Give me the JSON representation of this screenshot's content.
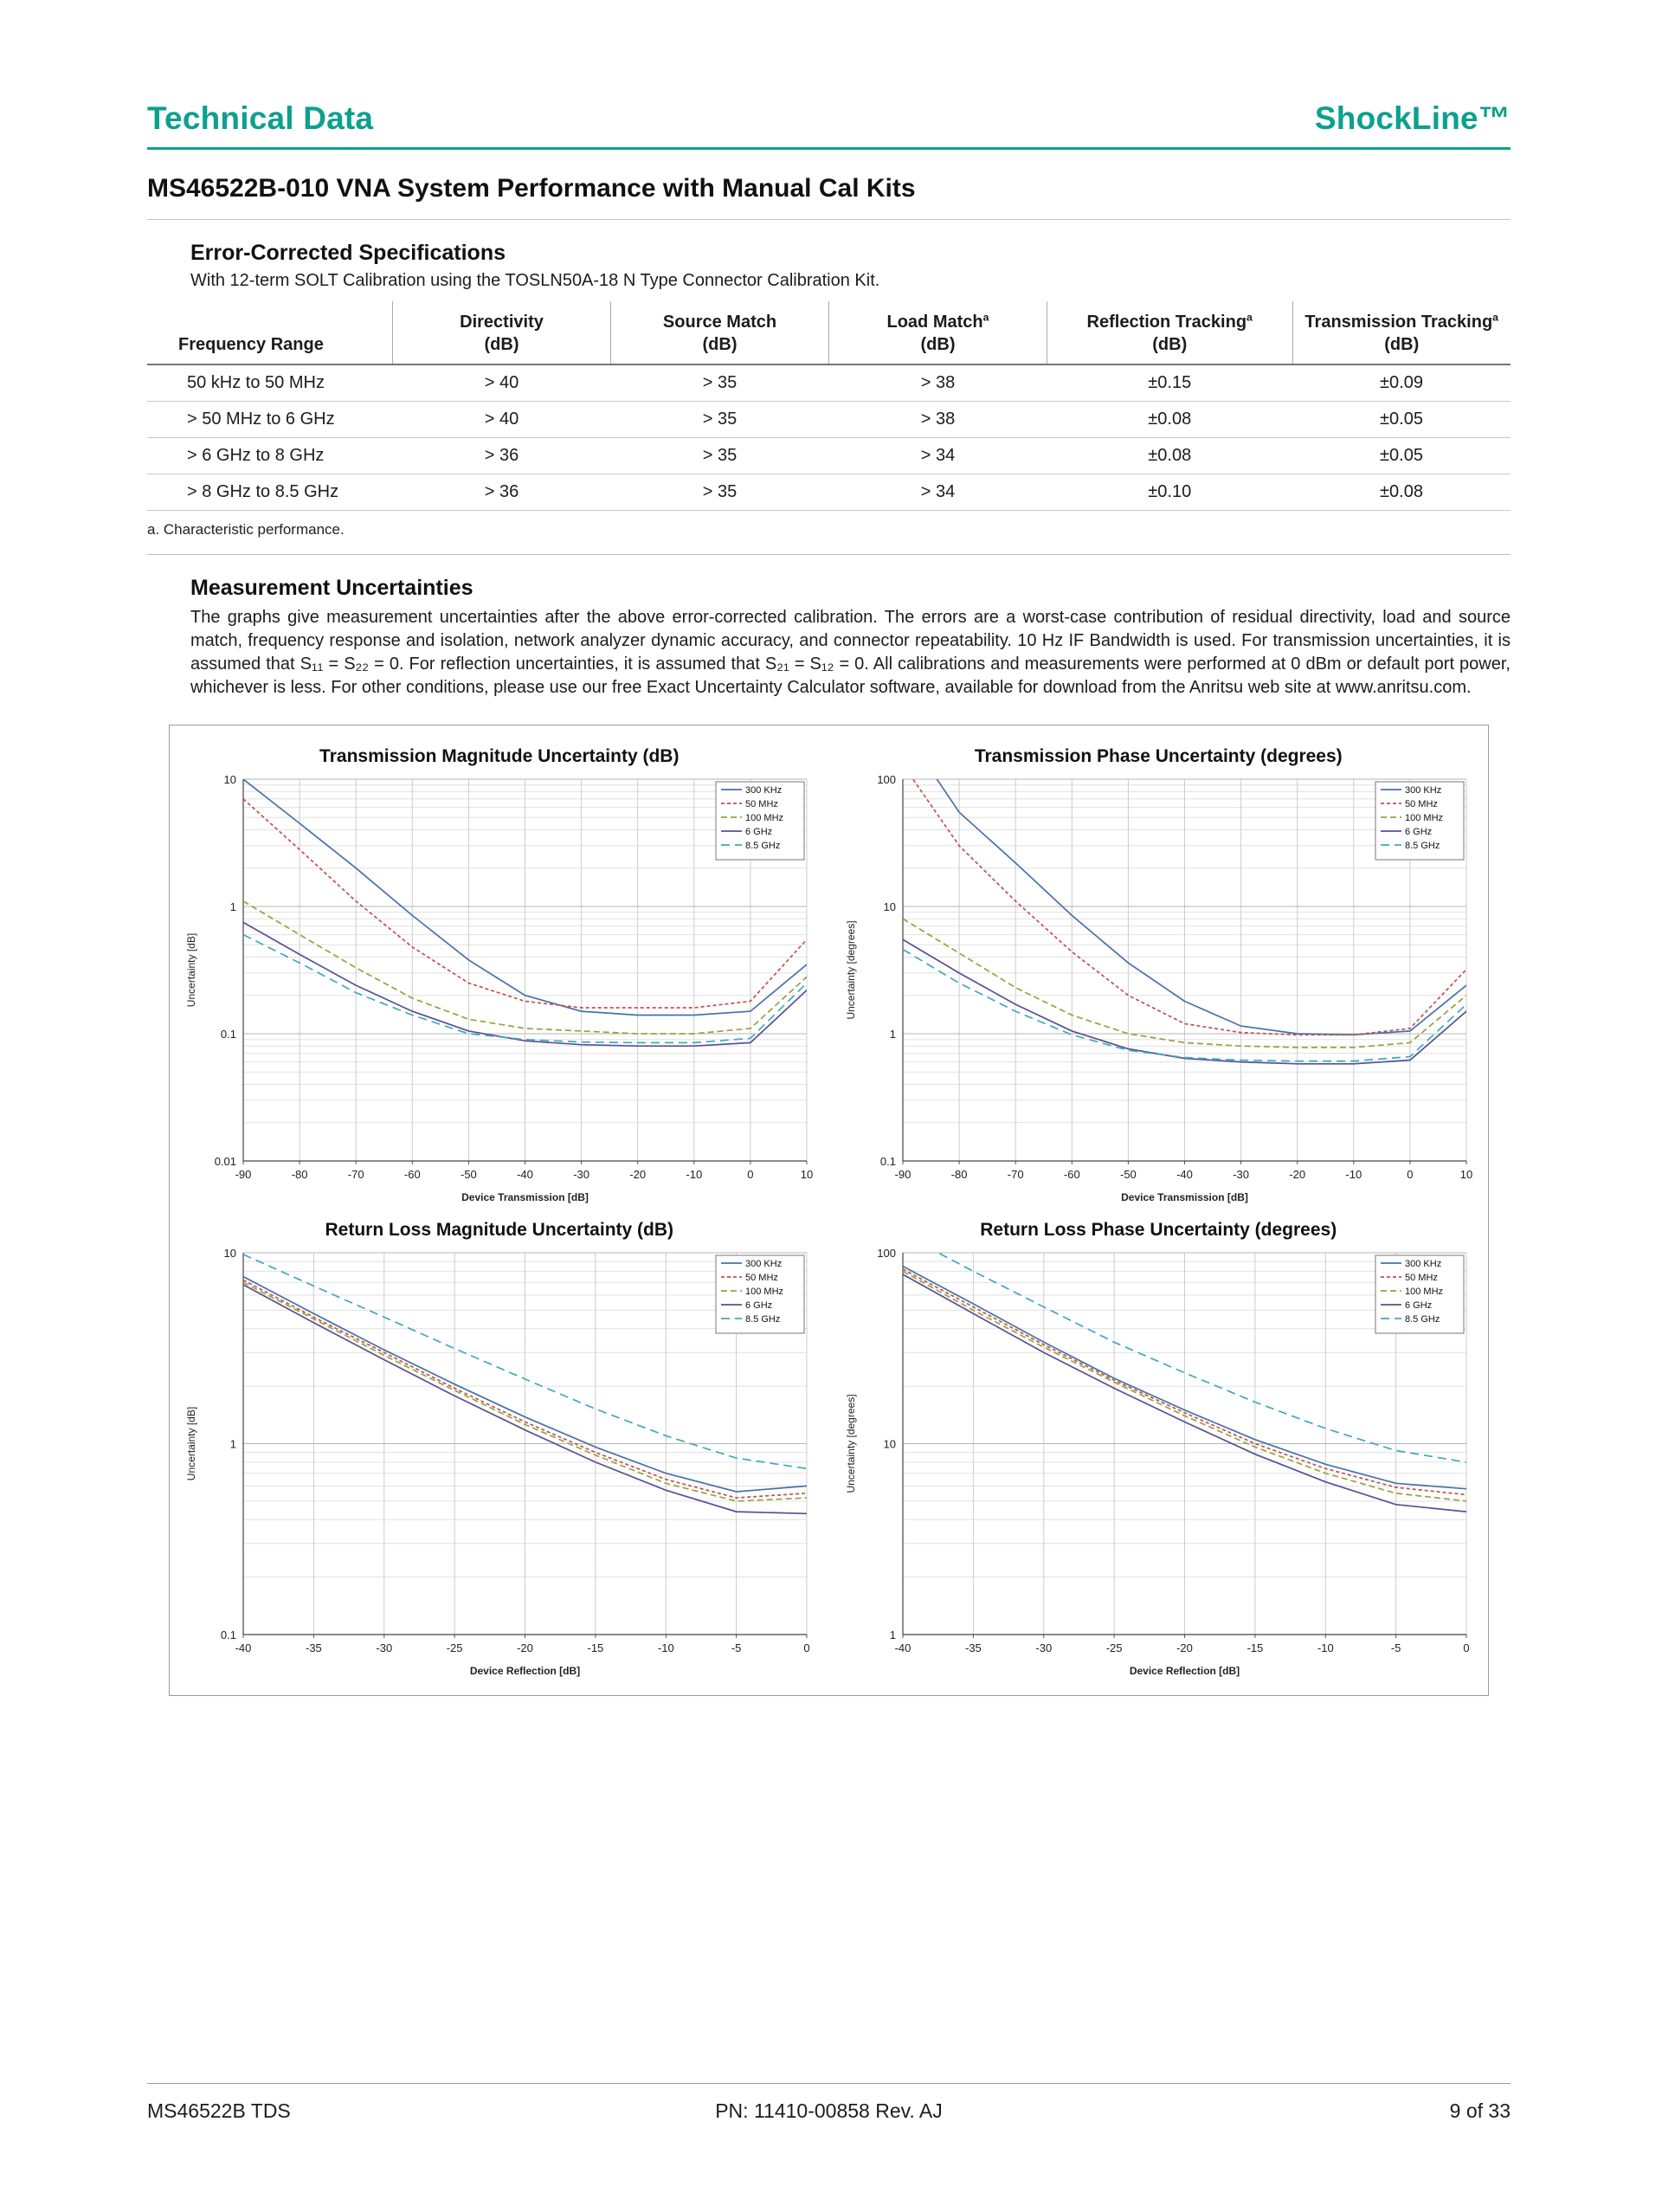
{
  "page": {
    "header_left": "Technical Data",
    "header_right": "ShockLine™",
    "title": "MS46522B-010 VNA System Performance with Manual Cal Kits",
    "footer_left": "MS46522B TDS",
    "footer_center": "PN: 11410-00858 Rev. AJ",
    "footer_right": "9 of 33"
  },
  "colors": {
    "brand_teal": "#0da08e"
  },
  "specs": {
    "section_title": "Error-Corrected Specifications",
    "intro": "With 12-term SOLT Calibration using the TOSLN50A-18 N Type Connector Calibration Kit.",
    "table": {
      "columns": [
        {
          "label": "Frequency Range",
          "sup": "",
          "unit": ""
        },
        {
          "label": "Directivity",
          "sup": "",
          "unit": "(dB)"
        },
        {
          "label": "Source Match",
          "sup": "",
          "unit": "(dB)"
        },
        {
          "label": "Load Match",
          "sup": "a",
          "unit": "(dB)"
        },
        {
          "label": "Reflection Tracking",
          "sup": "a",
          "unit": "(dB)"
        },
        {
          "label": "Transmission Tracking",
          "sup": "a",
          "unit": "(dB)"
        }
      ],
      "rows": [
        [
          "50 kHz to 50 MHz",
          "> 40",
          "> 35",
          "> 38",
          "±0.15",
          "±0.09"
        ],
        [
          "> 50 MHz to 6 GHz",
          "> 40",
          "> 35",
          "> 38",
          "±0.08",
          "±0.05"
        ],
        [
          "> 6 GHz to 8 GHz",
          "> 36",
          "> 35",
          "> 34",
          "±0.08",
          "±0.05"
        ],
        [
          "> 8 GHz to 8.5 GHz",
          "> 36",
          "> 35",
          "> 34",
          "±0.10",
          "±0.08"
        ]
      ]
    },
    "footnote": "a. Characteristic performance."
  },
  "uncertainties": {
    "section_title": "Measurement Uncertainties",
    "paragraph": "The graphs give measurement uncertainties after the above error-corrected calibration. The errors are a worst-case contribution of residual directivity, load and source match, frequency response and isolation, network analyzer dynamic accuracy, and connector repeatability. 10 Hz IF Bandwidth is used. For transmission uncertainties, it is assumed that S₁₁ = S₂₂ = 0. For reflection uncertainties, it is assumed that S₂₁ = S₁₂ = 0. All calibrations and measurements were performed at 0 dBm or default port power, whichever is less. For other conditions, please use our free Exact Uncertainty Calculator software, available for download from the Anritsu web site at www.anritsu.com."
  },
  "chart_data": [
    {
      "type": "line",
      "title": "Transmission Magnitude Uncertainty (dB)",
      "xlabel": "Device Transmission [dB]",
      "ylabel": "Uncertainty [dB]",
      "xlim": [
        -90,
        10
      ],
      "xtick_step": 10,
      "ylog": true,
      "ylim": [
        0.01,
        10
      ],
      "grid": true,
      "legend_position": "top-right",
      "x": [
        -90,
        -80,
        -70,
        -60,
        -50,
        -40,
        -30,
        -20,
        -10,
        0,
        10
      ],
      "series": [
        {
          "name": "300 KHz",
          "color": "#4572a7",
          "dash": "solid",
          "values": [
            10,
            4.5,
            2.0,
            0.85,
            0.38,
            0.2,
            0.15,
            0.14,
            0.14,
            0.15,
            0.35
          ]
        },
        {
          "name": "50 MHz",
          "color": "#c0504d",
          "dash": "shortdash",
          "values": [
            7.0,
            2.8,
            1.1,
            0.48,
            0.25,
            0.18,
            0.16,
            0.16,
            0.16,
            0.18,
            0.55
          ]
        },
        {
          "name": "100 MHz",
          "color": "#9ba03b",
          "dash": "dash",
          "values": [
            1.1,
            0.6,
            0.33,
            0.19,
            0.13,
            0.11,
            0.105,
            0.1,
            0.1,
            0.11,
            0.28
          ]
        },
        {
          "name": "6 GHz",
          "color": "#565095",
          "dash": "solid",
          "values": [
            0.75,
            0.42,
            0.24,
            0.15,
            0.105,
            0.088,
            0.082,
            0.08,
            0.08,
            0.085,
            0.22
          ]
        },
        {
          "name": "8.5 GHz",
          "color": "#3fa9bc",
          "dash": "longdash",
          "values": [
            0.6,
            0.36,
            0.21,
            0.14,
            0.1,
            0.09,
            0.086,
            0.085,
            0.085,
            0.092,
            0.25
          ]
        }
      ]
    },
    {
      "type": "line",
      "title": "Transmission Phase Uncertainty (degrees)",
      "xlabel": "Device Transmission [dB]",
      "ylabel": "Uncertainty [degrees]",
      "xlim": [
        -90,
        10
      ],
      "xtick_step": 10,
      "ylog": true,
      "ylim": [
        0.1,
        100
      ],
      "grid": true,
      "legend_position": "top-right",
      "x": [
        -90,
        -80,
        -70,
        -60,
        -50,
        -40,
        -30,
        -20,
        -10,
        0,
        10
      ],
      "series": [
        {
          "name": "300 KHz",
          "color": "#4572a7",
          "dash": "solid",
          "values": [
            250,
            55,
            22,
            8.5,
            3.6,
            1.8,
            1.15,
            1.0,
            0.98,
            1.05,
            2.4
          ]
        },
        {
          "name": "50 MHz",
          "color": "#c0504d",
          "dash": "shortdash",
          "values": [
            130,
            30,
            11,
            4.4,
            2.0,
            1.2,
            1.02,
            0.98,
            0.98,
            1.1,
            3.2
          ]
        },
        {
          "name": "100 MHz",
          "color": "#9ba03b",
          "dash": "dash",
          "values": [
            8.0,
            4.3,
            2.3,
            1.4,
            1.0,
            0.85,
            0.8,
            0.78,
            0.78,
            0.85,
            2.0
          ]
        },
        {
          "name": "6 GHz",
          "color": "#565095",
          "dash": "solid",
          "values": [
            5.5,
            3.0,
            1.7,
            1.05,
            0.76,
            0.64,
            0.6,
            0.58,
            0.58,
            0.62,
            1.5
          ]
        },
        {
          "name": "8.5 GHz",
          "color": "#3fa9bc",
          "dash": "longdash",
          "values": [
            4.6,
            2.5,
            1.5,
            0.98,
            0.74,
            0.65,
            0.62,
            0.61,
            0.61,
            0.66,
            1.7
          ]
        }
      ]
    },
    {
      "type": "line",
      "title": "Return Loss Magnitude Uncertainty (dB)",
      "xlabel": "Device Reflection [dB]",
      "ylabel": "Uncertainty [dB]",
      "xlim": [
        -40,
        0
      ],
      "xtick_step": 5,
      "ylog": true,
      "ylim": [
        0.1,
        10
      ],
      "grid": true,
      "legend_position": "top-right",
      "x": [
        -40,
        -35,
        -30,
        -25,
        -20,
        -15,
        -10,
        -5,
        0
      ],
      "series": [
        {
          "name": "300 KHz",
          "color": "#4572a7",
          "dash": "solid",
          "values": [
            7.5,
            4.8,
            3.1,
            2.05,
            1.38,
            0.96,
            0.7,
            0.56,
            0.6
          ]
        },
        {
          "name": "50 MHz",
          "color": "#c0504d",
          "dash": "shortdash",
          "values": [
            7.2,
            4.6,
            3.0,
            1.95,
            1.3,
            0.9,
            0.65,
            0.52,
            0.55
          ]
        },
        {
          "name": "100 MHz",
          "color": "#9ba03b",
          "dash": "dash",
          "values": [
            7.0,
            4.5,
            2.9,
            1.9,
            1.26,
            0.87,
            0.62,
            0.5,
            0.52
          ]
        },
        {
          "name": "6 GHz",
          "color": "#565095",
          "dash": "solid",
          "values": [
            6.8,
            4.3,
            2.75,
            1.78,
            1.18,
            0.8,
            0.57,
            0.44,
            0.43
          ]
        },
        {
          "name": "8.5 GHz",
          "color": "#3fa9bc",
          "dash": "longdash",
          "values": [
            9.8,
            6.7,
            4.6,
            3.15,
            2.18,
            1.52,
            1.1,
            0.84,
            0.74
          ]
        }
      ]
    },
    {
      "type": "line",
      "title": "Return Loss Phase Uncertainty (degrees)",
      "xlabel": "Device Reflection [dB]",
      "ylabel": "Uncertainty [degrees]",
      "xlim": [
        -40,
        0
      ],
      "xtick_step": 5,
      "ylog": true,
      "ylim": [
        1,
        100
      ],
      "grid": true,
      "legend_position": "top-right",
      "x": [
        -40,
        -35,
        -30,
        -25,
        -20,
        -15,
        -10,
        -5,
        0
      ],
      "series": [
        {
          "name": "300 KHz",
          "color": "#4572a7",
          "dash": "solid",
          "values": [
            85,
            54,
            34,
            22,
            15,
            10.5,
            7.8,
            6.2,
            5.8
          ]
        },
        {
          "name": "50 MHz",
          "color": "#c0504d",
          "dash": "shortdash",
          "values": [
            82,
            52,
            33,
            21.5,
            14.5,
            10,
            7.4,
            5.9,
            5.4
          ]
        },
        {
          "name": "100 MHz",
          "color": "#9ba03b",
          "dash": "dash",
          "values": [
            80,
            50,
            32,
            21,
            14,
            9.6,
            7.0,
            5.5,
            5.0
          ]
        },
        {
          "name": "6 GHz",
          "color": "#565095",
          "dash": "solid",
          "values": [
            77,
            48,
            30,
            19.5,
            13,
            8.8,
            6.3,
            4.8,
            4.4
          ]
        },
        {
          "name": "8.5 GHz",
          "color": "#3fa9bc",
          "dash": "longdash",
          "values": [
            125,
            80,
            52,
            34,
            23.5,
            16.5,
            12,
            9.2,
            8.0
          ]
        }
      ]
    }
  ]
}
